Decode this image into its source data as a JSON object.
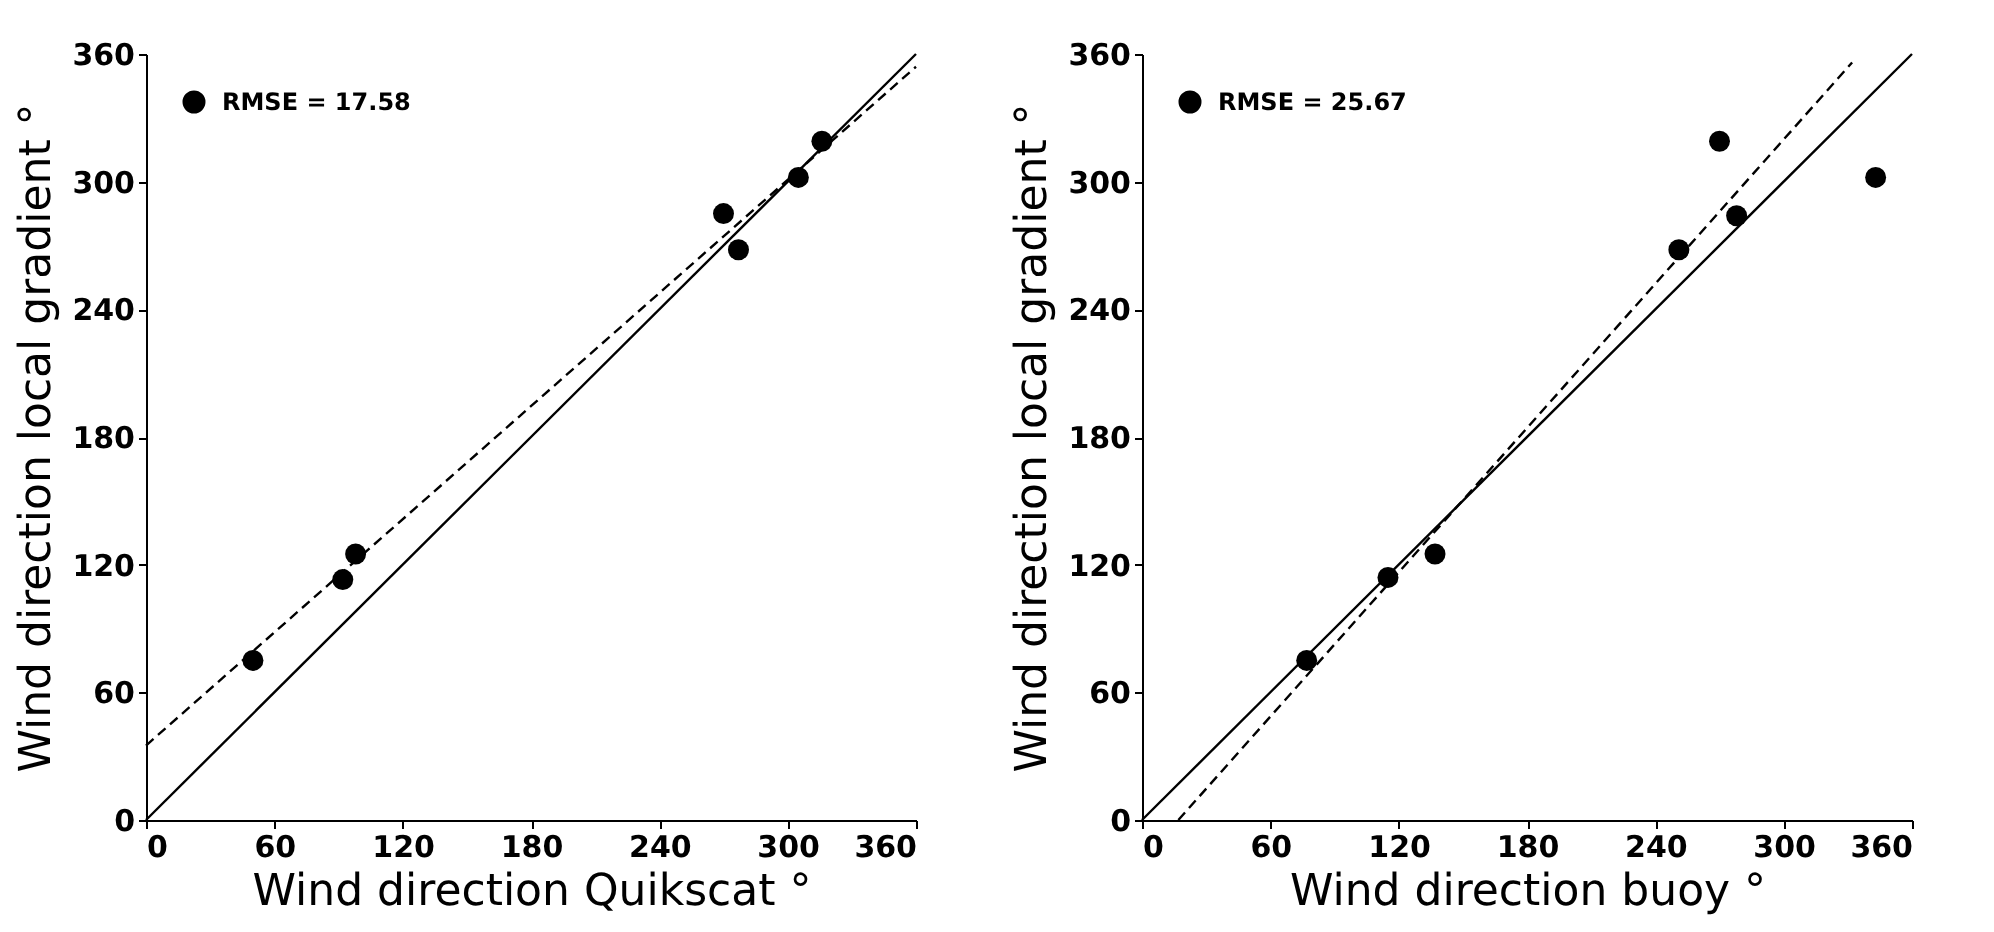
{
  "chart_data": [
    {
      "type": "scatter",
      "xlabel": "Wind direction Quikscat °",
      "ylabel": "Wind direction local gradient °",
      "xlim": [
        0,
        360
      ],
      "ylim": [
        0,
        360
      ],
      "xticks": [
        0,
        60,
        120,
        180,
        240,
        300,
        360
      ],
      "yticks": [
        0,
        60,
        120,
        180,
        240,
        300,
        360
      ],
      "grid": false,
      "legend": "top left",
      "series": [
        {
          "type": "scatter",
          "name": "RMSE = 17.58",
          "marker": "circle",
          "color": "#000000",
          "x": [
            50,
            92,
            98,
            270,
            277,
            305,
            316
          ],
          "values": [
            75,
            113,
            125,
            285,
            268,
            302,
            319
          ]
        },
        {
          "type": "line",
          "color": "#000000",
          "line_style": "solid",
          "x": [
            0,
            360
          ],
          "values": [
            0,
            360
          ]
        },
        {
          "type": "line",
          "color": "#000000",
          "line_style": "dashed",
          "x": [
            0,
            360
          ],
          "values": [
            35,
            354
          ]
        }
      ]
    },
    {
      "type": "scatter",
      "xlabel": "Wind direction buoy °",
      "ylabel": "Wind direction local gradient °",
      "xlim": [
        0,
        360
      ],
      "ylim": [
        0,
        360
      ],
      "xticks": [
        0,
        60,
        120,
        180,
        240,
        300,
        360
      ],
      "yticks": [
        0,
        60,
        120,
        180,
        240,
        300,
        360
      ],
      "grid": false,
      "legend": "top left",
      "series": [
        {
          "type": "scatter",
          "name": "RMSE = 25.67",
          "marker": "circle",
          "color": "#000000",
          "x": [
            77,
            115,
            137,
            251,
            270,
            278,
            343
          ],
          "values": [
            75,
            114,
            125,
            268,
            319,
            284,
            302
          ]
        },
        {
          "type": "line",
          "color": "#000000",
          "line_style": "solid",
          "x": [
            0,
            360
          ],
          "values": [
            0,
            360
          ]
        },
        {
          "type": "line",
          "color": "#000000",
          "line_style": "dashed",
          "x": [
            17,
            332
          ],
          "values": [
            0,
            356
          ]
        }
      ]
    }
  ]
}
